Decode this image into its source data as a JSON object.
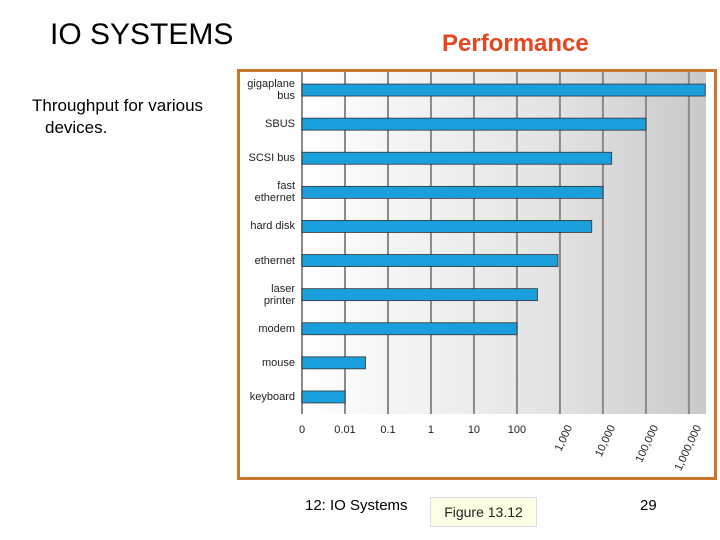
{
  "slide": {
    "title": "IO SYSTEMS",
    "subtitle": "Performance",
    "note": "Throughput for various devices.",
    "footer": "12: IO Systems",
    "figure": "Figure 13.12",
    "page": "29"
  },
  "chart_data": {
    "type": "bar",
    "orientation": "horizontal",
    "log_scale": true,
    "grid": true,
    "color": "#1a9fdc",
    "categories": [
      "gigaplane bus",
      "SBUS",
      "SCSI bus",
      "fast ethernet",
      "hard disk",
      "ethernet",
      "laser printer",
      "modem",
      "mouse",
      "keyboard"
    ],
    "values": [
      2400000,
      100000,
      16000,
      10000,
      5500,
      900,
      300,
      100,
      0.03,
      0.01
    ],
    "xlim": [
      0.001,
      2500000
    ],
    "xticks": [
      {
        "value": 0.001,
        "label": "0"
      },
      0.01,
      0.1,
      1,
      10,
      100,
      {
        "value": 1000,
        "label": "1,000"
      },
      {
        "value": 10000,
        "label": "10,000"
      },
      {
        "value": 100000,
        "label": "100,000"
      },
      {
        "value": 1000000,
        "label": "1,000,000"
      }
    ]
  }
}
